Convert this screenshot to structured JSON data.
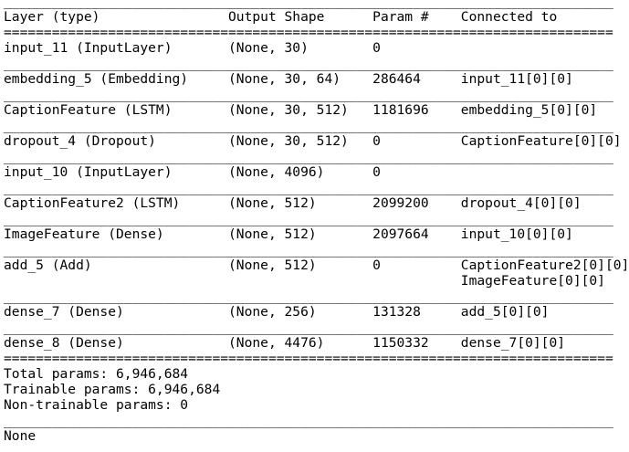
{
  "summary": {
    "header": {
      "columns": [
        "Layer (type)",
        "Output Shape",
        "Param #",
        "Connected to"
      ]
    },
    "rows": [
      {
        "layer": "input_11 (InputLayer)",
        "output_shape": "(None, 30)",
        "params": "0",
        "connected_to": []
      },
      {
        "layer": "embedding_5 (Embedding)",
        "output_shape": "(None, 30, 64)",
        "params": "286464",
        "connected_to": [
          "input_11[0][0]"
        ]
      },
      {
        "layer": "CaptionFeature (LSTM)",
        "output_shape": "(None, 30, 512)",
        "params": "1181696",
        "connected_to": [
          "embedding_5[0][0]"
        ]
      },
      {
        "layer": "dropout_4 (Dropout)",
        "output_shape": "(None, 30, 512)",
        "params": "0",
        "connected_to": [
          "CaptionFeature[0][0]"
        ]
      },
      {
        "layer": "input_10 (InputLayer)",
        "output_shape": "(None, 4096)",
        "params": "0",
        "connected_to": []
      },
      {
        "layer": "CaptionFeature2 (LSTM)",
        "output_shape": "(None, 512)",
        "params": "2099200",
        "connected_to": [
          "dropout_4[0][0]"
        ]
      },
      {
        "layer": "ImageFeature (Dense)",
        "output_shape": "(None, 512)",
        "params": "2097664",
        "connected_to": [
          "input_10[0][0]"
        ]
      },
      {
        "layer": "add_5 (Add)",
        "output_shape": "(None, 512)",
        "params": "0",
        "connected_to": [
          "CaptionFeature2[0][0]",
          "ImageFeature[0][0]"
        ]
      },
      {
        "layer": "dense_7 (Dense)",
        "output_shape": "(None, 256)",
        "params": "131328",
        "connected_to": [
          "add_5[0][0]"
        ]
      },
      {
        "layer": "dense_8 (Dense)",
        "output_shape": "(None, 4476)",
        "params": "1150332",
        "connected_to": [
          "dense_7[0][0]"
        ]
      }
    ],
    "totals": {
      "total_params": "Total params: 6,946,684",
      "trainable_params": "Trainable params: 6,946,684",
      "non_trainable_params": "Non-trainable params: 0"
    },
    "footer": "None",
    "layout": {
      "col_starts": [
        0,
        28,
        46,
        57
      ],
      "line_width": 76,
      "separator_char": "_",
      "double_separator_char": "="
    },
    "colors": {
      "text": "#000000",
      "background": "#ffffff"
    }
  }
}
